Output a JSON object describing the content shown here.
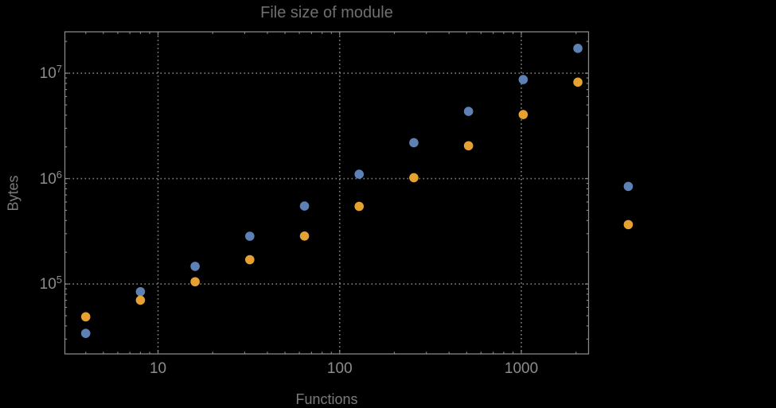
{
  "chart_data": {
    "type": "scatter",
    "title": "File size of module",
    "xlabel": "Functions",
    "ylabel": "Bytes",
    "x_scale": "log",
    "y_scale": "log",
    "x_range": [
      3.07,
      2345
    ],
    "y_range": [
      21700,
      24700000
    ],
    "grid": "dotted gridlines at decade powers, frame on all four sides with inward log minor ticks",
    "legend": "none",
    "x_ticks": [
      {
        "value": 10,
        "label": "10"
      },
      {
        "value": 100,
        "label": "100"
      },
      {
        "value": 1000,
        "label": "1000"
      }
    ],
    "y_ticks": [
      {
        "value": 100000,
        "base": "10",
        "exp": "5"
      },
      {
        "value": 1000000,
        "base": "10",
        "exp": "6"
      },
      {
        "value": 10000000,
        "base": "10",
        "exp": "7"
      }
    ],
    "series": [
      {
        "name": "series-blue",
        "color": "#5E81B5",
        "x": [
          4,
          8,
          16,
          32,
          64,
          128,
          256,
          512,
          1024,
          2048,
          3880
        ],
        "y": [
          34000,
          84500,
          147000,
          284000,
          549000,
          1100000,
          2190000,
          4340000,
          8700000,
          17200000,
          843000
        ]
      },
      {
        "name": "series-orange",
        "color": "#E6A133",
        "x": [
          4,
          8,
          16,
          32,
          64,
          128,
          256,
          512,
          1024,
          2048,
          3880
        ],
        "y": [
          48800,
          70200,
          105000,
          170000,
          285000,
          545000,
          1020000,
          2050000,
          4050000,
          8220000,
          366000
        ]
      }
    ]
  },
  "colors": {
    "background": "#000000",
    "frame": "#868686",
    "gridline": "#808080",
    "tick": "#868686",
    "title_text": "#6f6f6f",
    "axis_label_text": "#7b7b7b",
    "tick_label_text": "#8d8d8d"
  }
}
